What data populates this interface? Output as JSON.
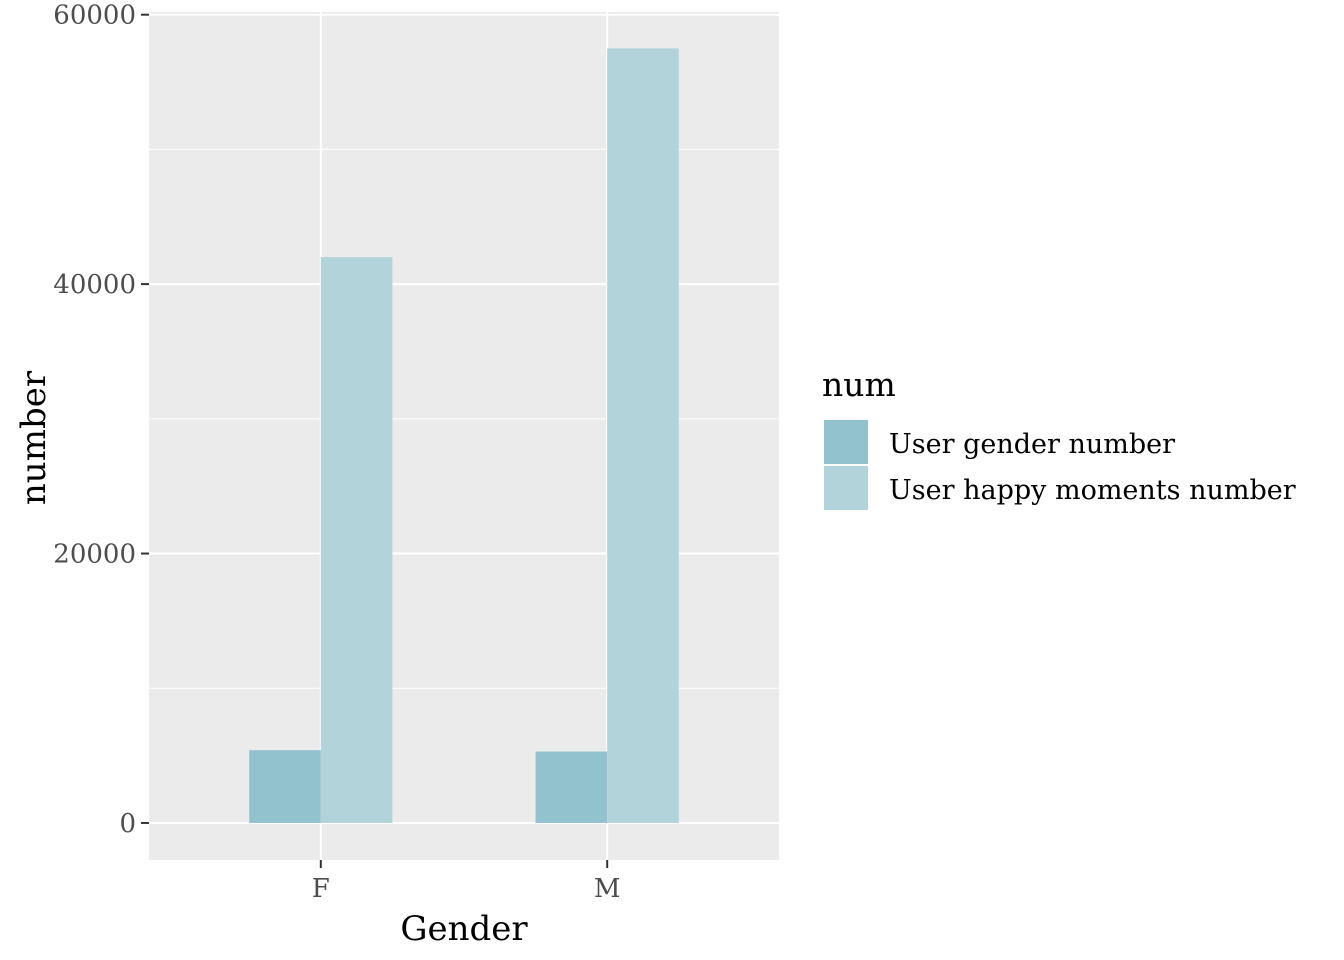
{
  "chart_data": {
    "type": "bar",
    "categories": [
      "F",
      "M"
    ],
    "series": [
      {
        "name": "User gender number",
        "values": [
          5400,
          5300
        ],
        "color": "#93c2cf"
      },
      {
        "name": "User happy moments number",
        "values": [
          42000,
          57500
        ],
        "color": "#b3d3da"
      }
    ],
    "xlabel": "Gender",
    "ylabel": "number",
    "ylim": [
      -2750,
      60200
    ],
    "yticks": [
      0,
      20000,
      40000,
      60000
    ],
    "ytick_labels": [
      "0",
      "20000",
      "40000",
      "60000"
    ],
    "grid": true,
    "legend": {
      "title": "num",
      "position": "right"
    },
    "panel_color": "#ebebeb"
  }
}
